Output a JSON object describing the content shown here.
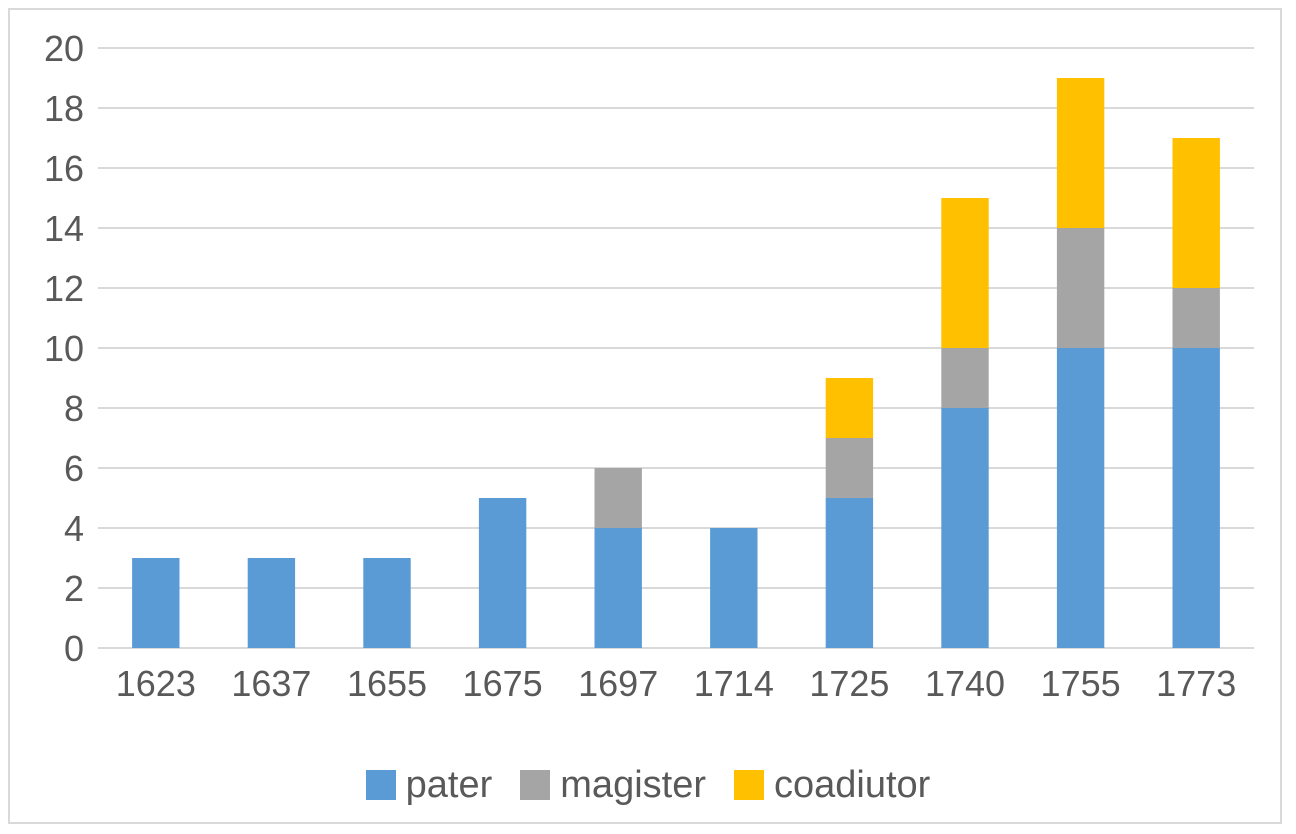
{
  "chart_data": {
    "type": "bar",
    "stacked": true,
    "categories": [
      "1623",
      "1637",
      "1655",
      "1675",
      "1697",
      "1714",
      "1725",
      "1740",
      "1755",
      "1773"
    ],
    "series": [
      {
        "name": "pater",
        "color": "#5b9bd5",
        "values": [
          3,
          3,
          3,
          5,
          4,
          4,
          5,
          8,
          10,
          10
        ]
      },
      {
        "name": "magister",
        "color": "#a5a5a5",
        "values": [
          0,
          0,
          0,
          0,
          2,
          0,
          2,
          2,
          4,
          2
        ]
      },
      {
        "name": "coadiutor",
        "color": "#ffc000",
        "values": [
          0,
          0,
          0,
          0,
          0,
          0,
          2,
          5,
          5,
          5
        ]
      }
    ],
    "title": "",
    "xlabel": "",
    "ylabel": "",
    "ylim": [
      0,
      20
    ],
    "yticks": [
      "0",
      "2",
      "4",
      "6",
      "8",
      "10",
      "12",
      "14",
      "16",
      "18",
      "20"
    ],
    "grid": true,
    "legend_position": "bottom",
    "gridline_color": "#d9d9d9"
  }
}
